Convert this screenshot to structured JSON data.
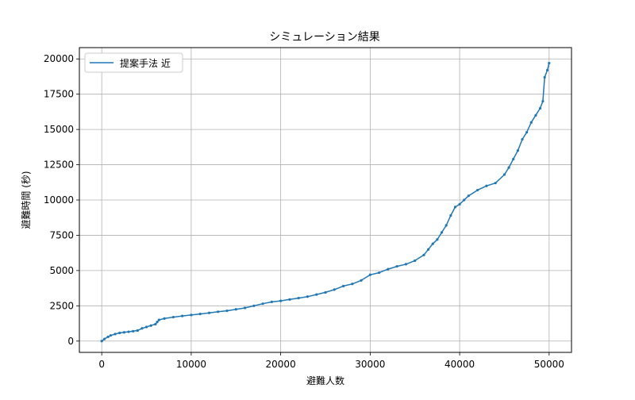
{
  "chart_data": {
    "type": "line",
    "title": "シミュレーション結果",
    "xlabel": "避難人数",
    "ylabel": "避難時間 (秒)",
    "xlim": [
      -2500,
      52500
    ],
    "ylim": [
      -800,
      20800
    ],
    "xticks": [
      0,
      10000,
      20000,
      30000,
      40000,
      50000
    ],
    "yticks": [
      0,
      2500,
      5000,
      7500,
      10000,
      12500,
      15000,
      17500,
      20000
    ],
    "grid": true,
    "legend_position": "top-left",
    "series": [
      {
        "name": "提案手法 近",
        "color": "#1f77b4",
        "x": [
          0,
          300,
          700,
          1000,
          1500,
          2000,
          2500,
          3000,
          3500,
          4000,
          4500,
          5000,
          5500,
          6000,
          6200,
          6400,
          7000,
          8000,
          9000,
          10000,
          11000,
          12000,
          13000,
          14000,
          15000,
          16000,
          17000,
          18000,
          19000,
          20000,
          21000,
          22000,
          23000,
          24000,
          25000,
          26000,
          27000,
          28000,
          29000,
          30000,
          31000,
          32000,
          33000,
          34000,
          35000,
          36000,
          36500,
          37000,
          37500,
          38000,
          38500,
          39000,
          39500,
          40000,
          40500,
          41000,
          42000,
          43000,
          44000,
          45000,
          45500,
          46000,
          46500,
          47000,
          47500,
          48000,
          48500,
          49000,
          49300,
          49500,
          49800,
          50000
        ],
        "y": [
          0,
          150,
          300,
          400,
          500,
          580,
          620,
          660,
          700,
          750,
          900,
          1000,
          1100,
          1200,
          1350,
          1500,
          1600,
          1700,
          1780,
          1850,
          1920,
          2000,
          2080,
          2150,
          2250,
          2350,
          2500,
          2650,
          2780,
          2850,
          2950,
          3050,
          3150,
          3300,
          3450,
          3650,
          3900,
          4050,
          4300,
          4700,
          4850,
          5100,
          5300,
          5450,
          5700,
          6100,
          6500,
          6900,
          7200,
          7700,
          8200,
          8900,
          9500,
          9700,
          10000,
          10300,
          10700,
          11000,
          11200,
          11800,
          12300,
          12900,
          13500,
          14300,
          14800,
          15500,
          16000,
          16500,
          17000,
          18700,
          19200,
          19700
        ]
      }
    ]
  }
}
